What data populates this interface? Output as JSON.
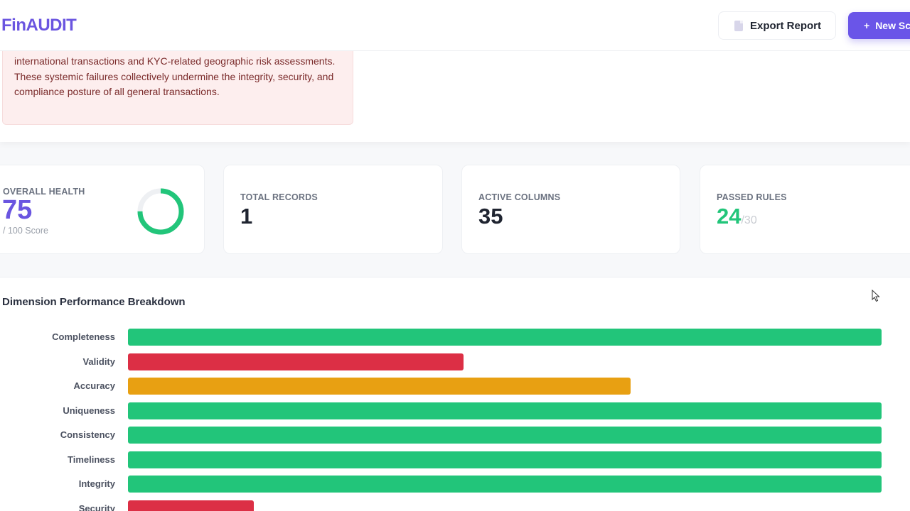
{
  "app": {
    "logo": "FinAUDIT"
  },
  "header": {
    "export_label": "Export Report",
    "new_label": "New Scan",
    "new_icon": "+"
  },
  "summary": {
    "text": "international transactions and KYC-related geographic risk assessments. These systemic failures collectively undermine the integrity, security, and compliance posture of all general transactions."
  },
  "stats": {
    "health": {
      "label": "OVERALL HEALTH",
      "value": "75",
      "sub": "/ 100 Score",
      "score": 75,
      "max": 100
    },
    "records": {
      "label": "TOTAL RECORDS",
      "value": "1"
    },
    "columns": {
      "label": "ACTIVE COLUMNS",
      "value": "35"
    },
    "rules": {
      "label": "PASSED RULES",
      "value": "24",
      "total": "/30"
    }
  },
  "colors": {
    "good": "#22c57a",
    "bad": "#dc2f45",
    "warn": "#e8a012",
    "accent": "#6a55e0"
  },
  "chart_data": {
    "type": "bar",
    "orientation": "horizontal",
    "title": "Dimension Performance Breakdown",
    "categories": [
      "Completeness",
      "Validity",
      "Accuracy",
      "Uniqueness",
      "Consistency",
      "Timeliness",
      "Integrity",
      "Security"
    ],
    "values": [
      100,
      44.5,
      66.7,
      100,
      100,
      100,
      100,
      16.7
    ],
    "status": [
      "good",
      "bad",
      "warn",
      "good",
      "good",
      "good",
      "good",
      "bad"
    ],
    "xlim": [
      0,
      100
    ],
    "grid": false
  }
}
